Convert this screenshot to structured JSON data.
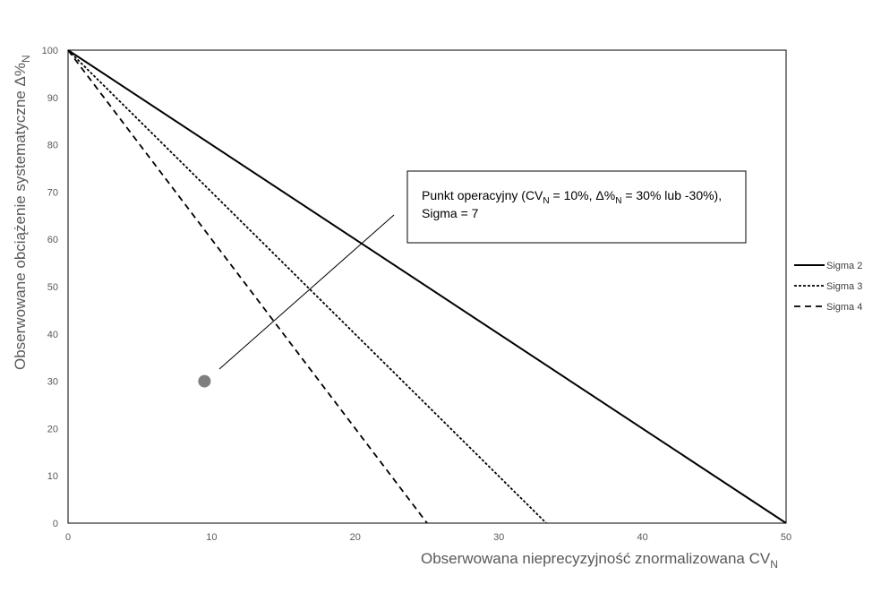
{
  "chart_data": {
    "type": "line",
    "x_ticks": [
      0,
      10,
      20,
      30,
      40,
      50
    ],
    "y_ticks": [
      0,
      10,
      20,
      30,
      40,
      50,
      60,
      70,
      80,
      90,
      100
    ],
    "xlim": [
      0,
      50
    ],
    "ylim": [
      0,
      100
    ],
    "xlabel": {
      "main": "Obserwowana nieprecyzyjność znormalizowana CV",
      "sub": "N"
    },
    "ylabel": {
      "main": "Obserwowane obciążenie systematyczne Δ%",
      "sub": "N"
    },
    "grid": false,
    "legend_position": "right",
    "series": [
      {
        "name": "Sigma 2",
        "style": "solid",
        "x": [
          0,
          50
        ],
        "y": [
          100,
          0
        ]
      },
      {
        "name": "Sigma 3",
        "style": "dotted",
        "x": [
          0,
          33.3
        ],
        "y": [
          100,
          0
        ]
      },
      {
        "name": "Sigma 4",
        "style": "dashed",
        "x": [
          0,
          25
        ],
        "y": [
          100,
          0
        ]
      }
    ],
    "point": {
      "x": 9.5,
      "y": 30,
      "color": "#7f7f7f"
    },
    "annotation": {
      "line1_a": "Punkt operacyjny (CV",
      "line1_sub1": "N",
      "line1_b": " = 10%, Δ%",
      "line1_sub2": "N",
      "line1_c": " = 30% lub -30%),",
      "line2": "Sigma = 7"
    },
    "colors": {
      "line": "#000000",
      "axis": "#000000",
      "tick_text": "#595959",
      "point": "#7f7f7f"
    }
  }
}
